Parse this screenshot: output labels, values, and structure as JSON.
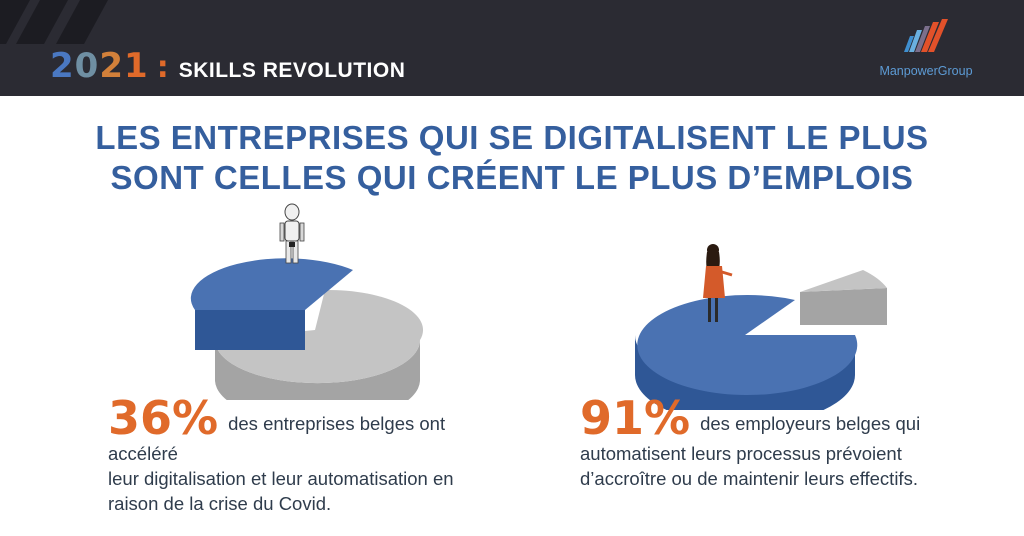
{
  "header": {
    "year": "2021",
    "colon": ":",
    "subtitle": "SKILLS REVOLUTION",
    "brand": "ManpowerGroup"
  },
  "headline": {
    "line1": "LES ENTREPRISES QUI SE DIGITALISENT LE PLUS",
    "line2": "SONT CELLES QUI CRÉENT LE PLUS D’EMPLOIS"
  },
  "colors": {
    "header_bg": "#2b2b33",
    "headline": "#355f9e",
    "accent": "#e06a2a",
    "pie_blue": "#4a72b2",
    "pie_grey": "#b9b9b9",
    "body_text": "#2f3c4c"
  },
  "stats": [
    {
      "value": "36%",
      "line1": "des entreprises belges ont accéléré",
      "line2": "leur digitalisation et leur automatisation en",
      "line3": "raison de la crise du Covid."
    },
    {
      "value": "91%",
      "line1": "des employeurs belges qui",
      "line2": "automatisent leurs processus prévoient",
      "line3": "d’accroître ou de maintenir leurs effectifs."
    }
  ],
  "chart_data": [
    {
      "type": "pie",
      "categories": [
        "",
        ""
      ],
      "values": [
        36,
        64
      ],
      "colors": [
        "#4a72b2",
        "#b9b9b9"
      ],
      "exploded": "second"
    },
    {
      "type": "pie",
      "categories": [
        "",
        ""
      ],
      "values": [
        91,
        9
      ],
      "colors": [
        "#4a72b2",
        "#b9b9b9"
      ],
      "exploded": "second"
    }
  ]
}
